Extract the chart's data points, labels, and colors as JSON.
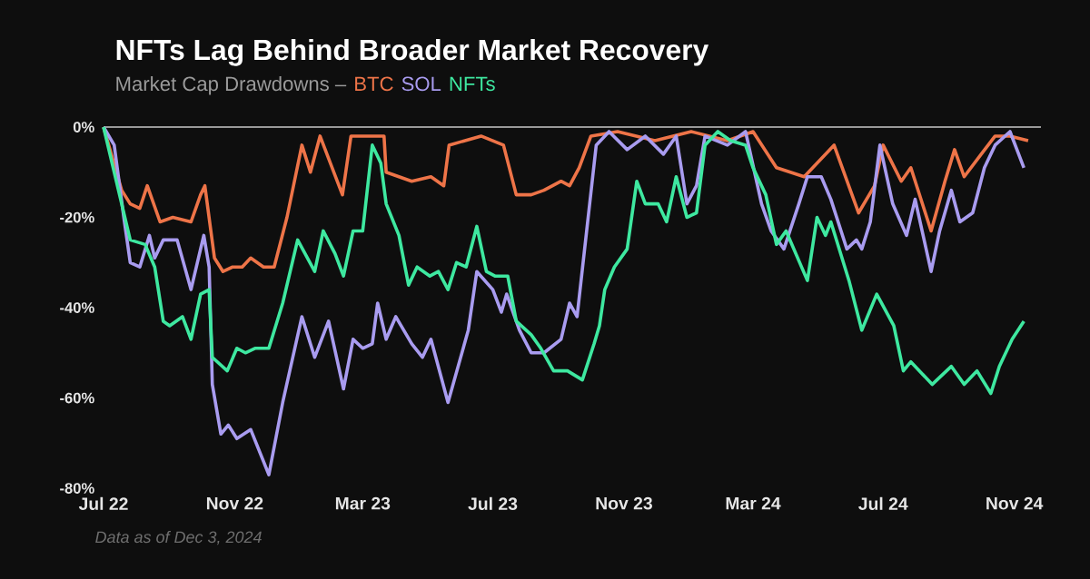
{
  "chart_data": {
    "type": "line",
    "title": "NFTs Lag Behind Broader Market Recovery",
    "subtitle": "Market Cap Drawdowns –",
    "annotations": [
      "Data as of Dec 3, 2024"
    ],
    "legend": "top left",
    "xlim": [
      "2022-07-01",
      "2024-11-26"
    ],
    "xticks": [
      {
        "value": "2022-07-01",
        "label": "Jul 22"
      },
      {
        "value": "2022-11-01",
        "label": "Nov 22"
      },
      {
        "value": "2023-03-01",
        "label": "Mar 23"
      },
      {
        "value": "2023-07-01",
        "label": "Jul 23"
      },
      {
        "value": "2023-11-01",
        "label": "Nov 23"
      },
      {
        "value": "2024-03-01",
        "label": "Mar 24"
      },
      {
        "value": "2024-07-01",
        "label": "Jul 24"
      },
      {
        "value": "2024-11-01",
        "label": "Nov 24"
      }
    ],
    "ylim": [
      -80,
      0
    ],
    "yticks": [
      {
        "value": 0,
        "label": "0%"
      },
      {
        "value": -20,
        "label": "-20%"
      },
      {
        "value": -40,
        "label": "-40%"
      },
      {
        "value": -60,
        "label": "-60%"
      },
      {
        "value": -80,
        "label": "-80%"
      }
    ],
    "ref_lines": [
      {
        "axis": "y",
        "value": 0,
        "color": "#c8c8c8"
      }
    ],
    "series": [
      {
        "name": "BTC",
        "color": "#ee7448",
        "x": [
          "2022-07-01",
          "2022-07-18",
          "2022-07-26",
          "2022-08-04",
          "2022-08-11",
          "2022-08-23",
          "2022-09-04",
          "2022-09-21",
          "2022-09-30",
          "2022-10-04",
          "2022-10-13",
          "2022-10-21",
          "2022-10-30",
          "2022-11-08",
          "2022-11-16",
          "2022-11-28",
          "2022-12-08",
          "2022-12-20",
          "2023-01-03",
          "2023-01-11",
          "2023-01-20",
          "2023-02-10",
          "2023-02-18",
          "2023-03-21",
          "2023-03-23",
          "2023-04-16",
          "2023-05-04",
          "2023-05-16",
          "2023-05-21",
          "2023-06-20",
          "2023-07-11",
          "2023-07-23",
          "2023-08-06",
          "2023-08-18",
          "2023-09-03",
          "2023-09-11",
          "2023-09-20",
          "2023-10-01",
          "2023-10-26",
          "2023-11-30",
          "2024-01-03",
          "2024-02-06",
          "2024-03-01",
          "2024-03-23",
          "2024-04-18",
          "2024-05-16",
          "2024-06-08",
          "2024-06-23",
          "2024-07-01",
          "2024-07-18",
          "2024-07-27",
          "2024-08-15",
          "2024-08-28",
          "2024-09-06",
          "2024-09-15",
          "2024-10-01",
          "2024-10-14",
          "2024-10-28",
          "2024-11-14"
        ],
        "values": [
          0,
          -14,
          -17,
          -18,
          -13,
          -21,
          -20,
          -21,
          -15,
          -13,
          -29,
          -32,
          -31,
          -31,
          -29,
          -31,
          -31,
          -20,
          -4,
          -10,
          -2,
          -15,
          -2,
          -2,
          -10,
          -12,
          -11,
          -13,
          -4,
          -2,
          -4,
          -15,
          -15,
          -14,
          -12,
          -13,
          -9,
          -2,
          -1,
          -3,
          -1,
          -3,
          -1,
          -9,
          -11,
          -4,
          -19,
          -13,
          -4,
          -12,
          -9,
          -23,
          -12,
          -5,
          -11,
          -6,
          -2,
          -2,
          -3
        ]
      },
      {
        "name": "SOL",
        "color": "#a99cf0",
        "x": [
          "2022-07-01",
          "2022-07-11",
          "2022-07-20",
          "2022-07-26",
          "2022-08-04",
          "2022-08-13",
          "2022-08-18",
          "2022-08-26",
          "2022-09-08",
          "2022-09-21",
          "2022-10-03",
          "2022-10-08",
          "2022-10-11",
          "2022-10-19",
          "2022-10-26",
          "2022-11-03",
          "2022-11-16",
          "2022-12-03",
          "2022-12-16",
          "2023-01-03",
          "2023-01-15",
          "2023-01-28",
          "2023-02-11",
          "2023-02-20",
          "2023-03-01",
          "2023-03-10",
          "2023-03-15",
          "2023-03-23",
          "2023-04-01",
          "2023-04-16",
          "2023-04-26",
          "2023-05-04",
          "2023-05-20",
          "2023-06-08",
          "2023-06-16",
          "2023-07-01",
          "2023-07-09",
          "2023-07-14",
          "2023-07-26",
          "2023-08-06",
          "2023-08-18",
          "2023-09-03",
          "2023-09-11",
          "2023-09-18",
          "2023-10-06",
          "2023-10-18",
          "2023-11-04",
          "2023-11-21",
          "2023-12-08",
          "2023-12-20",
          "2023-12-30",
          "2024-01-08",
          "2024-01-16",
          "2024-02-06",
          "2024-02-23",
          "2024-03-09",
          "2024-03-18",
          "2024-03-30",
          "2024-04-13",
          "2024-04-21",
          "2024-05-04",
          "2024-05-13",
          "2024-05-28",
          "2024-06-06",
          "2024-06-11",
          "2024-06-19",
          "2024-06-28",
          "2024-07-10",
          "2024-07-23",
          "2024-07-31",
          "2024-08-15",
          "2024-08-23",
          "2024-09-03",
          "2024-09-11",
          "2024-09-23",
          "2024-10-04",
          "2024-10-14",
          "2024-10-28",
          "2024-11-10"
        ],
        "values": [
          0,
          -4,
          -20,
          -30,
          -31,
          -24,
          -29,
          -25,
          -25,
          -36,
          -24,
          -31,
          -57,
          -68,
          -66,
          -69,
          -67,
          -77,
          -61,
          -42,
          -51,
          -43,
          -58,
          -47,
          -49,
          -48,
          -39,
          -47,
          -42,
          -48,
          -51,
          -47,
          -61,
          -45,
          -32,
          -36,
          -41,
          -37,
          -45,
          -50,
          -50,
          -47,
          -39,
          -42,
          -4,
          -1,
          -5,
          -2,
          -6,
          -2,
          -17,
          -13,
          -2,
          -4,
          -1,
          -17,
          -23,
          -27,
          -17,
          -11,
          -11,
          -16,
          -27,
          -25,
          -27,
          -21,
          -4,
          -17,
          -24,
          -16,
          -32,
          -23,
          -14,
          -21,
          -19,
          -9,
          -4,
          -1,
          -9
        ]
      },
      {
        "name": "NFTs",
        "color": "#3ee8a0",
        "x": [
          "2022-07-01",
          "2022-07-18",
          "2022-07-26",
          "2022-08-09",
          "2022-08-18",
          "2022-08-26",
          "2022-09-01",
          "2022-09-13",
          "2022-09-21",
          "2022-09-30",
          "2022-10-08",
          "2022-10-11",
          "2022-10-25",
          "2022-11-03",
          "2022-11-11",
          "2022-11-20",
          "2022-12-03",
          "2022-12-16",
          "2022-12-30",
          "2023-01-15",
          "2023-01-23",
          "2023-02-03",
          "2023-02-11",
          "2023-02-20",
          "2023-03-01",
          "2023-03-10",
          "2023-03-18",
          "2023-03-23",
          "2023-04-04",
          "2023-04-13",
          "2023-04-21",
          "2023-05-03",
          "2023-05-11",
          "2023-05-20",
          "2023-05-28",
          "2023-06-06",
          "2023-06-16",
          "2023-06-25",
          "2023-07-03",
          "2023-07-15",
          "2023-07-23",
          "2023-08-06",
          "2023-08-15",
          "2023-08-27",
          "2023-09-09",
          "2023-09-23",
          "2023-10-04",
          "2023-10-09",
          "2023-10-14",
          "2023-10-23",
          "2023-11-04",
          "2023-11-13",
          "2023-11-21",
          "2023-12-03",
          "2023-12-11",
          "2023-12-20",
          "2023-12-30",
          "2024-01-08",
          "2024-01-16",
          "2024-01-28",
          "2024-02-09",
          "2024-02-23",
          "2024-03-01",
          "2024-03-13",
          "2024-03-23",
          "2024-04-01",
          "2024-04-21",
          "2024-04-30",
          "2024-05-08",
          "2024-05-13",
          "2024-05-30",
          "2024-06-11",
          "2024-06-25",
          "2024-07-11",
          "2024-07-20",
          "2024-07-27",
          "2024-08-16",
          "2024-09-03",
          "2024-09-15",
          "2024-09-27",
          "2024-10-10",
          "2024-10-18",
          "2024-10-30",
          "2024-11-10"
        ],
        "values": [
          0,
          -17,
          -25,
          -26,
          -31,
          -43,
          -44,
          -42,
          -47,
          -37,
          -36,
          -51,
          -54,
          -49,
          -50,
          -49,
          -49,
          -39,
          -25,
          -32,
          -23,
          -28,
          -33,
          -23,
          -23,
          -4,
          -8,
          -17,
          -24,
          -35,
          -31,
          -33,
          -32,
          -36,
          -30,
          -31,
          -22,
          -32,
          -33,
          -33,
          -43,
          -46,
          -49,
          -54,
          -54,
          -56,
          -48,
          -44,
          -36,
          -31,
          -27,
          -12,
          -17,
          -17,
          -21,
          -11,
          -20,
          -19,
          -4,
          -1,
          -3,
          -4,
          -9,
          -15,
          -26,
          -23,
          -34,
          -20,
          -24,
          -21,
          -34,
          -45,
          -37,
          -44,
          -54,
          -52,
          -57,
          -53,
          -57,
          -54,
          -59,
          -53,
          -47,
          -43
        ]
      }
    ]
  }
}
